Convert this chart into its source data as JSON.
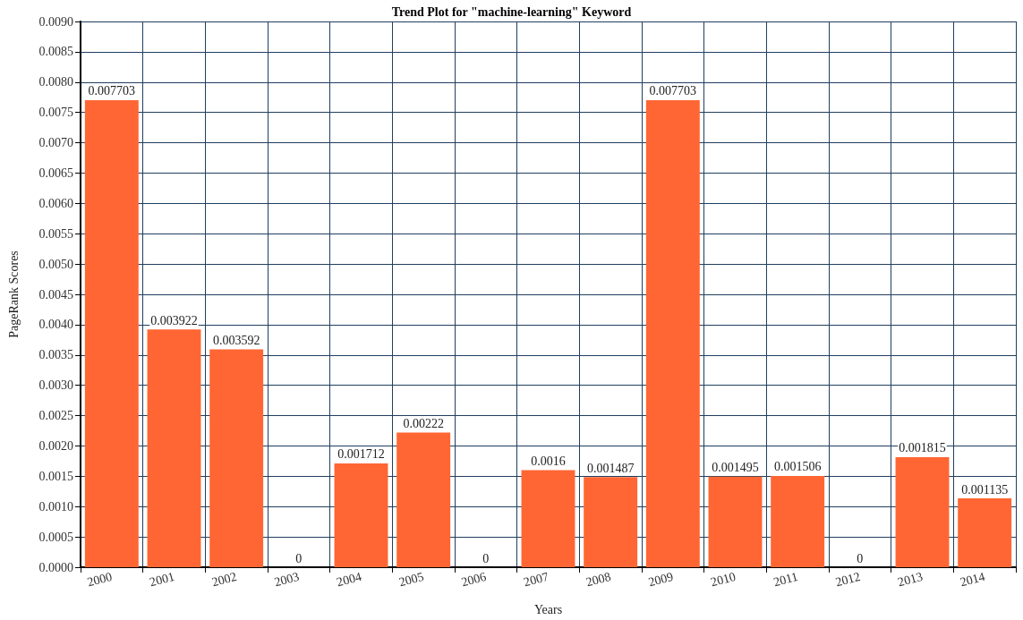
{
  "chart_data": {
    "type": "bar",
    "title": "Trend Plot for \"machine-learning\" Keyword",
    "xlabel": "Years",
    "ylabel": "PageRank Scores",
    "categories": [
      "2000",
      "2001",
      "2002",
      "2003",
      "2004",
      "2005",
      "2006",
      "2007",
      "2008",
      "2009",
      "2010",
      "2011",
      "2012",
      "2013",
      "2014"
    ],
    "values": [
      0.007703,
      0.003922,
      0.003592,
      0,
      0.001712,
      0.00222,
      0,
      0.0016,
      0.001487,
      0.007703,
      0.001495,
      0.001506,
      0,
      0.001815,
      0.001135
    ],
    "color": "#ff6633",
    "data_labels": true,
    "grid": true,
    "ylim": [
      0,
      0.009
    ],
    "yticks": [
      {
        "value": 0,
        "label": "0.0000"
      },
      {
        "value": 0.0005,
        "label": "0.0005"
      },
      {
        "value": 0.001,
        "label": "0.0010"
      },
      {
        "value": 0.0015,
        "label": "0.0015"
      },
      {
        "value": 0.002,
        "label": "0.0020"
      },
      {
        "value": 0.0025,
        "label": "0.0025"
      },
      {
        "value": 0.003,
        "label": "0.0030"
      },
      {
        "value": 0.0035,
        "label": "0.0035"
      },
      {
        "value": 0.004,
        "label": "0.0040"
      },
      {
        "value": 0.0045,
        "label": "0.0045"
      },
      {
        "value": 0.005,
        "label": "0.0050"
      },
      {
        "value": 0.0055,
        "label": "0.0055"
      },
      {
        "value": 0.006,
        "label": "0.0060"
      },
      {
        "value": 0.0065,
        "label": "0.0065"
      },
      {
        "value": 0.007,
        "label": "0.0070"
      },
      {
        "value": 0.0075,
        "label": "0.0075"
      },
      {
        "value": 0.008,
        "label": "0.0080"
      },
      {
        "value": 0.0085,
        "label": "0.0085"
      },
      {
        "value": 0.009,
        "label": "0.0090"
      }
    ]
  }
}
